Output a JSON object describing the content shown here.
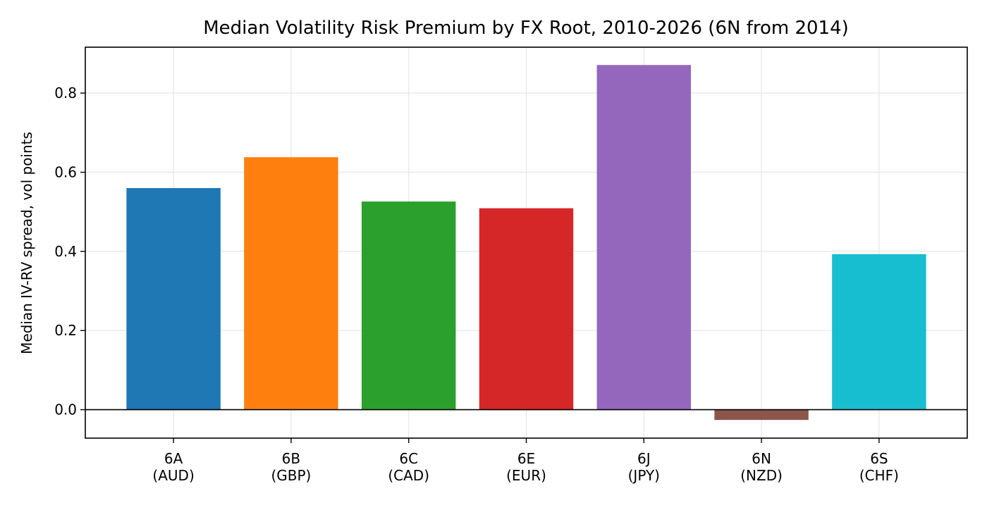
{
  "chart_data": {
    "type": "bar",
    "title": "Median Volatility Risk Premium by FX Root, 2010-2026 (6N from 2014)",
    "xlabel": "",
    "ylabel": "Median IV-RV spread, vol points",
    "categories": [
      [
        "6A",
        "(AUD)"
      ],
      [
        "6B",
        "(GBP)"
      ],
      [
        "6C",
        "(CAD)"
      ],
      [
        "6E",
        "(EUR)"
      ],
      [
        "6J",
        "(JPY)"
      ],
      [
        "6N",
        "(NZD)"
      ],
      [
        "6S",
        "(CHF)"
      ]
    ],
    "values": [
      0.56,
      0.638,
      0.526,
      0.509,
      0.871,
      -0.026,
      0.393
    ],
    "colors": [
      "#1f77b4",
      "#ff7f0e",
      "#2ca02c",
      "#d62728",
      "#9467bd",
      "#8c564b",
      "#17becf"
    ],
    "ylim": [
      -0.072,
      0.916
    ],
    "yticks": [
      0.0,
      0.2,
      0.4,
      0.6,
      0.8
    ],
    "ytick_labels": [
      "0.0",
      "0.2",
      "0.4",
      "0.6",
      "0.8"
    ],
    "grid": true,
    "zero_line": true,
    "legend": "none"
  }
}
